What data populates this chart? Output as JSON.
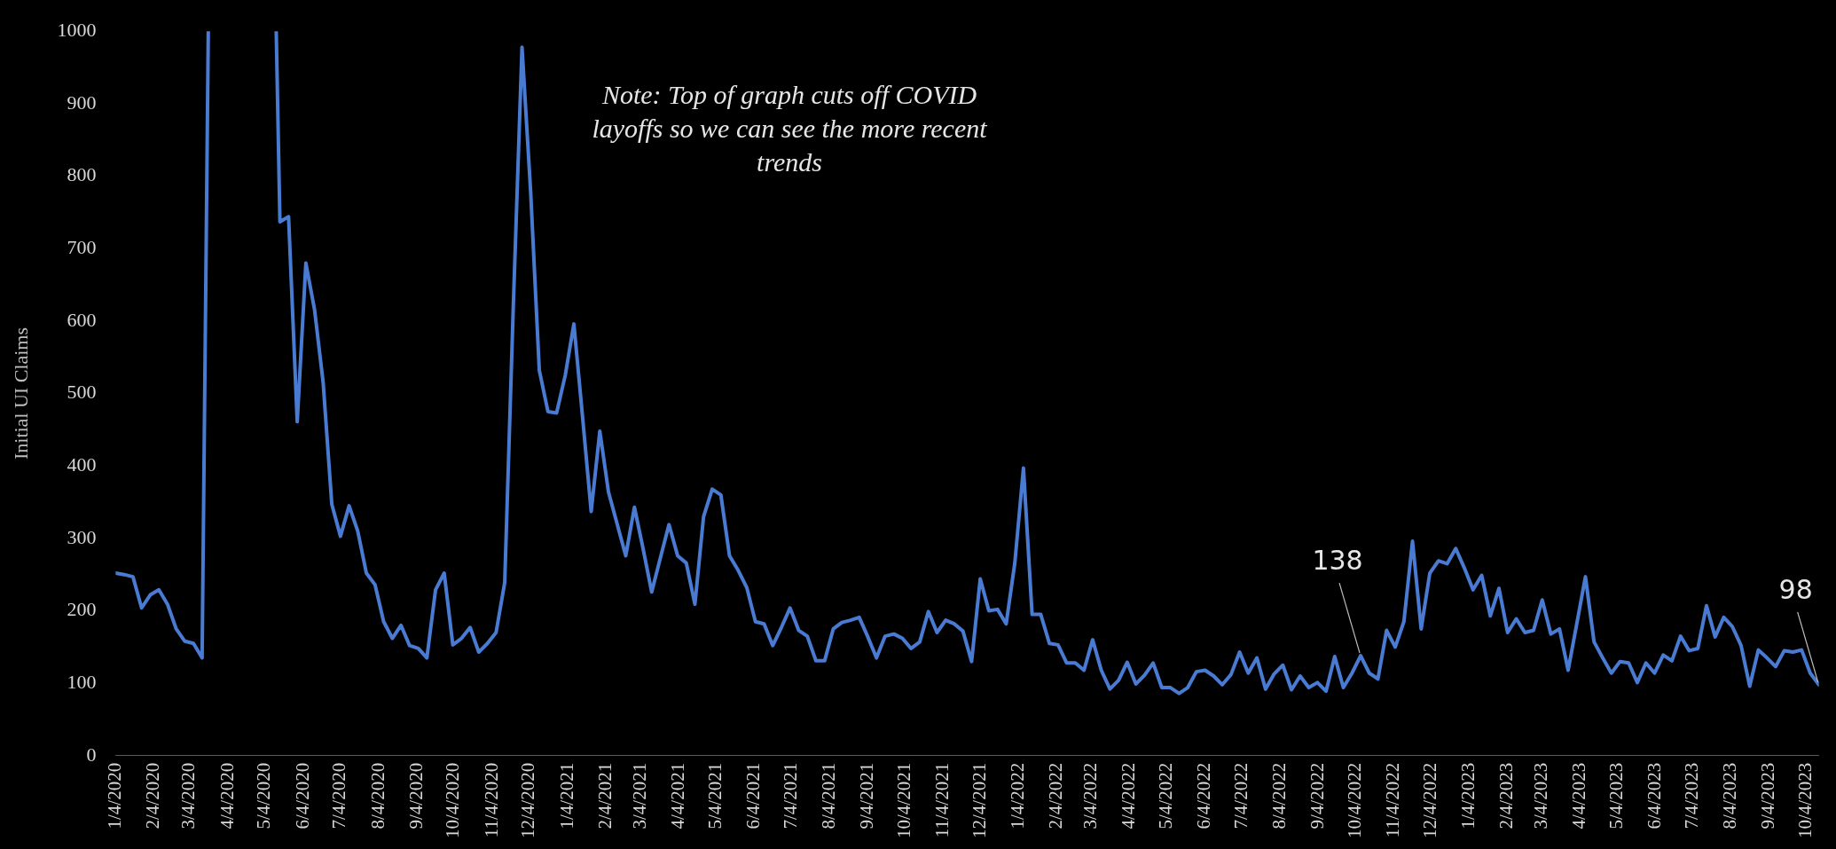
{
  "chart_data": {
    "type": "line",
    "ylabel": "Initial UI Claims",
    "color": "#4a7bd3",
    "marker": "none",
    "grid": false,
    "legend": false,
    "ylim": [
      0,
      1000
    ],
    "yticks": [
      0,
      100,
      200,
      300,
      400,
      500,
      600,
      700,
      800,
      900,
      1000
    ],
    "xlim": [
      "2020-01-04",
      "2023-10-14"
    ],
    "xticks": [
      {
        "value": "2020-01-04",
        "label": "1/4/2020"
      },
      {
        "value": "2020-02-04",
        "label": "2/4/2020"
      },
      {
        "value": "2020-03-04",
        "label": "3/4/2020"
      },
      {
        "value": "2020-04-04",
        "label": "4/4/2020"
      },
      {
        "value": "2020-05-04",
        "label": "5/4/2020"
      },
      {
        "value": "2020-06-04",
        "label": "6/4/2020"
      },
      {
        "value": "2020-07-04",
        "label": "7/4/2020"
      },
      {
        "value": "2020-08-04",
        "label": "8/4/2020"
      },
      {
        "value": "2020-09-04",
        "label": "9/4/2020"
      },
      {
        "value": "2020-10-04",
        "label": "10/4/2020"
      },
      {
        "value": "2020-11-04",
        "label": "11/4/2020"
      },
      {
        "value": "2020-12-04",
        "label": "12/4/2020"
      },
      {
        "value": "2021-01-04",
        "label": "1/4/2021"
      },
      {
        "value": "2021-02-04",
        "label": "2/4/2021"
      },
      {
        "value": "2021-03-04",
        "label": "3/4/2021"
      },
      {
        "value": "2021-04-04",
        "label": "4/4/2021"
      },
      {
        "value": "2021-05-04",
        "label": "5/4/2021"
      },
      {
        "value": "2021-06-04",
        "label": "6/4/2021"
      },
      {
        "value": "2021-07-04",
        "label": "7/4/2021"
      },
      {
        "value": "2021-08-04",
        "label": "8/4/2021"
      },
      {
        "value": "2021-09-04",
        "label": "9/4/2021"
      },
      {
        "value": "2021-10-04",
        "label": "10/4/2021"
      },
      {
        "value": "2021-11-04",
        "label": "11/4/2021"
      },
      {
        "value": "2021-12-04",
        "label": "12/4/2021"
      },
      {
        "value": "2022-01-04",
        "label": "1/4/2022"
      },
      {
        "value": "2022-02-04",
        "label": "2/4/2022"
      },
      {
        "value": "2022-03-04",
        "label": "3/4/2022"
      },
      {
        "value": "2022-04-04",
        "label": "4/4/2022"
      },
      {
        "value": "2022-05-04",
        "label": "5/4/2022"
      },
      {
        "value": "2022-06-04",
        "label": "6/4/2022"
      },
      {
        "value": "2022-07-04",
        "label": "7/4/2022"
      },
      {
        "value": "2022-08-04",
        "label": "8/4/2022"
      },
      {
        "value": "2022-09-04",
        "label": "9/4/2022"
      },
      {
        "value": "2022-10-04",
        "label": "10/4/2022"
      },
      {
        "value": "2022-11-04",
        "label": "11/4/2022"
      },
      {
        "value": "2022-12-04",
        "label": "12/4/2022"
      },
      {
        "value": "2023-01-04",
        "label": "1/4/2023"
      },
      {
        "value": "2023-02-04",
        "label": "2/4/2023"
      },
      {
        "value": "2023-03-04",
        "label": "3/4/2023"
      },
      {
        "value": "2023-04-04",
        "label": "4/4/2023"
      },
      {
        "value": "2023-05-04",
        "label": "5/4/2023"
      },
      {
        "value": "2023-06-04",
        "label": "6/4/2023"
      },
      {
        "value": "2023-07-04",
        "label": "7/4/2023"
      },
      {
        "value": "2023-08-04",
        "label": "8/4/2023"
      },
      {
        "value": "2023-09-04",
        "label": "9/4/2023"
      },
      {
        "value": "2023-10-04",
        "label": "10/4/2023"
      }
    ],
    "x": [
      "2020-01-04",
      "2020-01-11",
      "2020-01-18",
      "2020-01-25",
      "2020-02-01",
      "2020-02-08",
      "2020-02-15",
      "2020-02-22",
      "2020-02-29",
      "2020-03-07",
      "2020-03-14",
      "2020-03-19",
      "2020-04-15",
      "2020-05-13",
      "2020-05-16",
      "2020-05-23",
      "2020-05-30",
      "2020-06-06",
      "2020-06-13",
      "2020-06-20",
      "2020-06-27",
      "2020-07-04",
      "2020-07-11",
      "2020-07-18",
      "2020-07-25",
      "2020-08-01",
      "2020-08-08",
      "2020-08-15",
      "2020-08-22",
      "2020-08-29",
      "2020-09-05",
      "2020-09-12",
      "2020-09-19",
      "2020-09-26",
      "2020-10-03",
      "2020-10-10",
      "2020-10-17",
      "2020-10-24",
      "2020-10-31",
      "2020-11-07",
      "2020-11-14",
      "2020-11-21",
      "2020-11-28",
      "2020-12-05",
      "2020-12-12",
      "2020-12-19",
      "2020-12-26",
      "2021-01-02",
      "2021-01-09",
      "2021-01-16",
      "2021-01-23",
      "2021-01-30",
      "2021-02-06",
      "2021-02-13",
      "2021-02-20",
      "2021-02-27",
      "2021-03-06",
      "2021-03-13",
      "2021-03-20",
      "2021-03-27",
      "2021-04-03",
      "2021-04-10",
      "2021-04-17",
      "2021-04-24",
      "2021-05-01",
      "2021-05-08",
      "2021-05-15",
      "2021-05-22",
      "2021-05-29",
      "2021-06-05",
      "2021-06-12",
      "2021-06-19",
      "2021-06-26",
      "2021-07-03",
      "2021-07-10",
      "2021-07-17",
      "2021-07-24",
      "2021-07-31",
      "2021-08-07",
      "2021-08-14",
      "2021-08-21",
      "2021-08-28",
      "2021-09-04",
      "2021-09-11",
      "2021-09-18",
      "2021-09-25",
      "2021-10-02",
      "2021-10-09",
      "2021-10-16",
      "2021-10-23",
      "2021-10-30",
      "2021-11-06",
      "2021-11-13",
      "2021-11-20",
      "2021-11-27",
      "2021-12-04",
      "2021-12-11",
      "2021-12-18",
      "2021-12-25",
      "2022-01-01",
      "2022-01-08",
      "2022-01-15",
      "2022-01-22",
      "2022-01-29",
      "2022-02-05",
      "2022-02-12",
      "2022-02-19",
      "2022-02-26",
      "2022-03-05",
      "2022-03-12",
      "2022-03-19",
      "2022-03-26",
      "2022-04-02",
      "2022-04-09",
      "2022-04-16",
      "2022-04-23",
      "2022-04-30",
      "2022-05-07",
      "2022-05-14",
      "2022-05-21",
      "2022-05-28",
      "2022-06-04",
      "2022-06-11",
      "2022-06-18",
      "2022-06-25",
      "2022-07-02",
      "2022-07-09",
      "2022-07-16",
      "2022-07-23",
      "2022-07-30",
      "2022-08-06",
      "2022-08-13",
      "2022-08-20",
      "2022-08-27",
      "2022-09-03",
      "2022-09-10",
      "2022-09-17",
      "2022-09-24",
      "2022-10-01",
      "2022-10-08",
      "2022-10-15",
      "2022-10-22",
      "2022-10-29",
      "2022-11-05",
      "2022-11-12",
      "2022-11-19",
      "2022-11-26",
      "2022-12-03",
      "2022-12-10",
      "2022-12-17",
      "2022-12-24",
      "2022-12-31",
      "2023-01-07",
      "2023-01-14",
      "2023-01-21",
      "2023-01-28",
      "2023-02-04",
      "2023-02-11",
      "2023-02-18",
      "2023-02-25",
      "2023-03-04",
      "2023-03-11",
      "2023-03-18",
      "2023-03-25",
      "2023-04-01",
      "2023-04-08",
      "2023-04-15",
      "2023-04-22",
      "2023-04-29",
      "2023-05-06",
      "2023-05-13",
      "2023-05-20",
      "2023-05-27",
      "2023-06-03",
      "2023-06-10",
      "2023-06-17",
      "2023-06-24",
      "2023-07-01",
      "2023-07-08",
      "2023-07-15",
      "2023-07-22",
      "2023-07-29",
      "2023-08-05",
      "2023-08-12",
      "2023-08-19",
      "2023-08-26",
      "2023-09-02",
      "2023-09-09",
      "2023-09-16",
      "2023-09-23",
      "2023-09-30",
      "2023-10-07",
      "2023-10-14"
    ],
    "values": [
      252,
      250,
      247,
      204,
      222,
      229,
      209,
      175,
      158,
      155,
      135,
      1000,
      null,
      1000,
      737,
      744,
      461,
      680,
      616,
      515,
      347,
      303,
      345,
      310,
      252,
      236,
      185,
      162,
      180,
      152,
      148,
      135,
      229,
      252,
      153,
      162,
      177,
      143,
      155,
      170,
      239,
      623,
      978,
      778,
      532,
      475,
      473,
      525,
      596,
      468,
      337,
      448,
      364,
      320,
      276,
      343,
      286,
      226,
      273,
      319,
      276,
      266,
      209,
      330,
      368,
      360,
      276,
      256,
      232,
      185,
      182,
      152,
      177,
      204,
      173,
      165,
      131,
      131,
      175,
      184,
      187,
      191,
      164,
      135,
      165,
      168,
      162,
      148,
      157,
      199,
      170,
      187,
      182,
      172,
      130,
      244,
      200,
      202,
      182,
      266,
      397,
      195,
      195,
      155,
      153,
      128,
      128,
      118,
      160,
      118,
      92,
      104,
      129,
      99,
      111,
      128,
      94,
      94,
      86,
      94,
      116,
      118,
      110,
      98,
      112,
      143,
      114,
      135,
      92,
      113,
      125,
      91,
      110,
      94,
      101,
      89,
      137,
      94,
      114,
      138,
      114,
      106,
      173,
      150,
      185,
      296,
      175,
      252,
      269,
      265,
      286,
      259,
      229,
      249,
      193,
      231,
      170,
      189,
      170,
      173,
      215,
      168,
      175,
      118,
      182,
      247,
      157,
      135,
      114,
      130,
      128,
      101,
      128,
      114,
      139,
      131,
      165,
      145,
      148,
      207,
      164,
      191,
      178,
      152,
      96,
      146,
      135,
      123,
      145,
      143,
      146,
      114,
      98
    ],
    "annotations": [
      "Note: Top of graph cuts off COVID layoffs so we can see the more recent trends",
      {
        "text": "138",
        "x": "2022-10-08",
        "y": 138
      },
      {
        "text": "98",
        "x": "2023-10-14",
        "y": 98
      }
    ]
  }
}
